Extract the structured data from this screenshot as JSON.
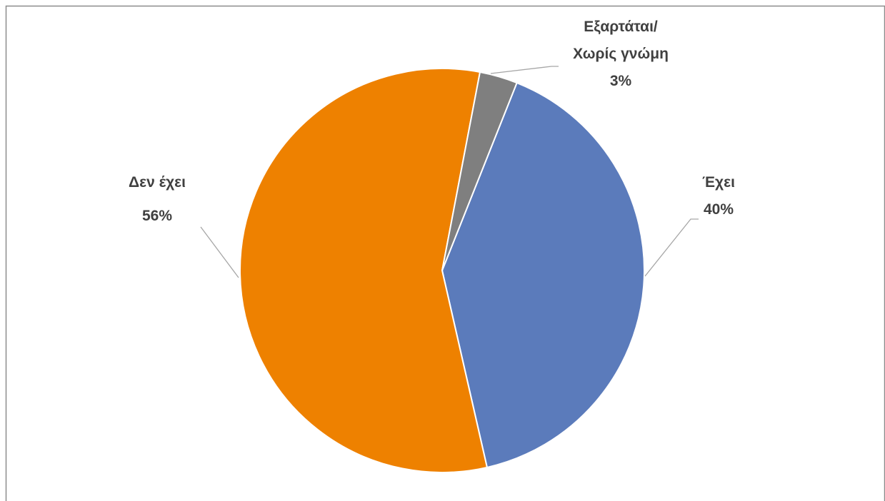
{
  "chart_data": {
    "type": "pie",
    "slices": [
      {
        "label_lines": [
          "Έχει"
        ],
        "value": 40,
        "value_label": "40%",
        "color": "#5b7bbb"
      },
      {
        "label_lines": [
          "Δεν έχει"
        ],
        "value": 56,
        "value_label": "56%",
        "color": "#ee8100"
      },
      {
        "label_lines": [
          "Εξαρτάται/",
          "Χωρίς γνώμη"
        ],
        "value": 3,
        "value_label": "3%",
        "color": "#7f7f7f"
      }
    ],
    "start": "after the small slice at the top, clockwise",
    "legend": "none",
    "border_color": "#8c8c8c",
    "leader_color": "#a6a6a6"
  }
}
